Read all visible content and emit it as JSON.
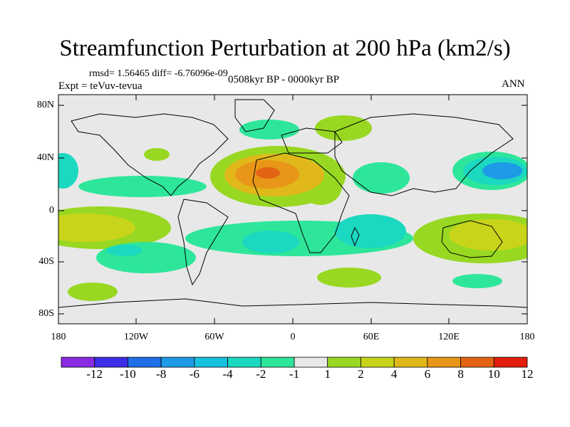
{
  "title": "Streamfunction Perturbation at 200 hPa (km2/s)",
  "stats_text": "rmsd= 1.56465 diff= -6.76096e-09",
  "expt_text": "Expt = teVuv-tevua",
  "period_text": "0508kyr BP - 0000kyr BP",
  "season_text": "ANN",
  "lat_ticks": [
    "80N",
    "40N",
    "0",
    "40S",
    "80S"
  ],
  "lon_ticks": [
    "180",
    "120W",
    "60W",
    "0",
    "60E",
    "120E",
    "180"
  ],
  "colorbar": {
    "labels": [
      "-12",
      "-10",
      "-8",
      "-6",
      "-4",
      "-2",
      "-1",
      "1",
      "2",
      "4",
      "6",
      "8",
      "10",
      "12"
    ],
    "colors": [
      "#8a2be2",
      "#3c2ee6",
      "#1f6fe8",
      "#1d9be6",
      "#18c0e0",
      "#1bd8c0",
      "#2ee69a",
      "#e8e8e8",
      "#98d822",
      "#c8d41a",
      "#e0b81a",
      "#e89618",
      "#e26412",
      "#e21e0c"
    ]
  },
  "colors": {
    "background_field": "#e8e8e8",
    "coastline": "#000000"
  }
}
